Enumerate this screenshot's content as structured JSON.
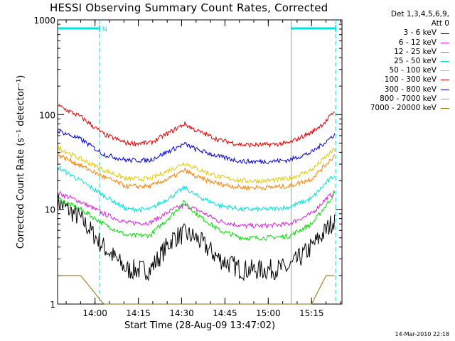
{
  "chart_data": {
    "type": "line",
    "title": "HESSI Observing Summary Count Rates, Corrected",
    "xlabel": "Start Time (28-Aug-09 13:47:02)",
    "ylabel": "Corrected Count Rate (s⁻¹ detector⁻¹)",
    "y_scale": "log",
    "ylim": [
      1,
      1000
    ],
    "y_ticks": [
      "1",
      "10",
      "100",
      "1000"
    ],
    "x_unit": "minutes since 13:47:02",
    "xlim": [
      0,
      98.5
    ],
    "x_ticks": [
      {
        "label": "14:00",
        "value": 12.97
      },
      {
        "label": "14:15",
        "value": 27.97
      },
      {
        "label": "14:30",
        "value": 42.97
      },
      {
        "label": "14:45",
        "value": 57.97
      },
      {
        "label": "15:00",
        "value": 72.97
      },
      {
        "label": "15:15",
        "value": 87.97
      }
    ],
    "x_minor_step": 5,
    "grid": false,
    "legend_header": "Det 1,3,4,5,6,9,\nAtt 0",
    "legend_position": "right",
    "night_marker_label": "N",
    "night_band_minutes": [
      [
        0,
        14.5
      ],
      [
        80.9,
        96.3
      ]
    ],
    "saa_lines_minutes": [
      80.9
    ],
    "x": [
      0,
      8,
      16,
      24,
      32,
      40,
      44,
      48,
      56,
      64,
      72,
      80,
      88,
      93,
      96
    ],
    "series": [
      {
        "name": "3 - 6 keV",
        "color": "#000000",
        "values": [
          12,
          8,
          4,
          2.3,
          2.3,
          5,
          5.5,
          5,
          3,
          2.3,
          2.3,
          2.4,
          4,
          6,
          8
        ]
      },
      {
        "name": "6 - 12 keV",
        "color": "#e020e0",
        "values": [
          15,
          12,
          9,
          7.2,
          7.2,
          10,
          11,
          10,
          7.5,
          6.7,
          6.7,
          7,
          9,
          13,
          15
        ]
      },
      {
        "name": "12 - 25 keV",
        "color": "#00e000",
        "values": [
          13,
          10,
          7,
          5.3,
          5.3,
          9,
          12,
          9,
          6,
          5,
          5,
          5.2,
          7,
          11,
          15
        ]
      },
      {
        "name": "25 - 50 keV",
        "color": "#00e0e0",
        "values": [
          28,
          20,
          14,
          10,
          10,
          14,
          17,
          14,
          11,
          10,
          10,
          10.5,
          13,
          19,
          23
        ]
      },
      {
        "name": "50 - 100 keV",
        "color": "#e0c800",
        "values": [
          45,
          34,
          26,
          21,
          21,
          27,
          31,
          27,
          22,
          20,
          20,
          21,
          26,
          36,
          43
        ]
      },
      {
        "name": "100 - 300 keV",
        "color": "#e00000",
        "values": [
          125,
          95,
          62,
          50,
          50,
          68,
          80,
          68,
          54,
          48,
          48,
          50,
          65,
          85,
          110
        ]
      },
      {
        "name": "300 - 800 keV",
        "color": "#0000e0",
        "values": [
          68,
          55,
          38,
          33,
          33,
          43,
          49,
          43,
          36,
          32,
          32,
          33,
          40,
          52,
          62
        ]
      },
      {
        "name": "800 - 7000 keV",
        "color": "#ff8000",
        "values": [
          38,
          29,
          22,
          17.5,
          17.5,
          22,
          26,
          22,
          18.5,
          17,
          17,
          17.5,
          21,
          30,
          37
        ]
      },
      {
        "name": "7000 - 20000 keV",
        "color": "#8b7000",
        "values": [
          2,
          2,
          1,
          1,
          1,
          1,
          1,
          1,
          1,
          1,
          1,
          1,
          1,
          2,
          2
        ]
      }
    ]
  },
  "footer_stamp": "14-Mar-2010 22:18"
}
